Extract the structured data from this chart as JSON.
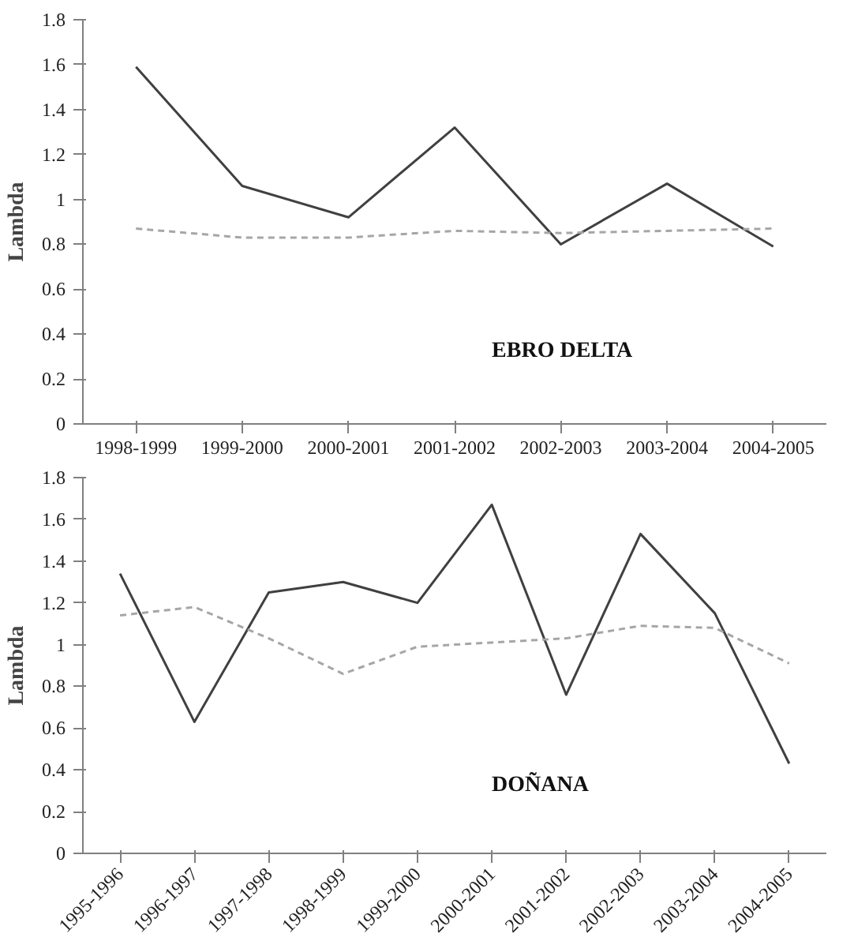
{
  "chart_data": [
    {
      "type": "line",
      "ylabel": "Lambda",
      "annotations": [
        "EBRO  DELTA"
      ],
      "categories": [
        "1998-1999",
        "1999-2000",
        "2000-2001",
        "2001-2002",
        "2002-2003",
        "2003-2004",
        "2004-2005"
      ],
      "series": [
        {
          "color": "#404040",
          "line_style": "solid",
          "values": [
            1.59,
            1.06,
            0.92,
            1.32,
            0.8,
            1.07,
            0.79
          ]
        },
        {
          "color": "#a6a6a6",
          "line_style": "dashed",
          "values": [
            0.87,
            0.83,
            0.83,
            0.86,
            0.85,
            0.86,
            0.87
          ]
        }
      ],
      "ylim": [
        0,
        1.8
      ],
      "yticks": [
        0,
        0.2,
        0.4,
        0.6,
        0.8,
        1,
        1.2,
        1.4,
        1.6,
        1.8
      ]
    },
    {
      "type": "line",
      "ylabel": "Lambda",
      "annotations": [
        "DOÑANA"
      ],
      "categories": [
        "1995-1996",
        "1996-1997",
        "1997-1998",
        "1998-1999",
        "1999-2000",
        "2000-2001",
        "2001-2002",
        "2002-2003",
        "2003-2004",
        "2004-2005"
      ],
      "series": [
        {
          "color": "#404040",
          "line_style": "solid",
          "values": [
            1.34,
            0.63,
            1.25,
            1.3,
            1.2,
            1.67,
            0.76,
            1.53,
            1.15,
            0.43
          ]
        },
        {
          "color": "#a6a6a6",
          "line_style": "dashed",
          "values": [
            1.14,
            1.18,
            1.03,
            0.86,
            0.99,
            1.01,
            1.03,
            1.09,
            1.08,
            0.91
          ]
        }
      ],
      "ylim": [
        0,
        1.8
      ],
      "yticks": [
        0,
        0.2,
        0.4,
        0.6,
        0.8,
        1,
        1.2,
        1.4,
        1.6,
        1.8
      ]
    }
  ]
}
